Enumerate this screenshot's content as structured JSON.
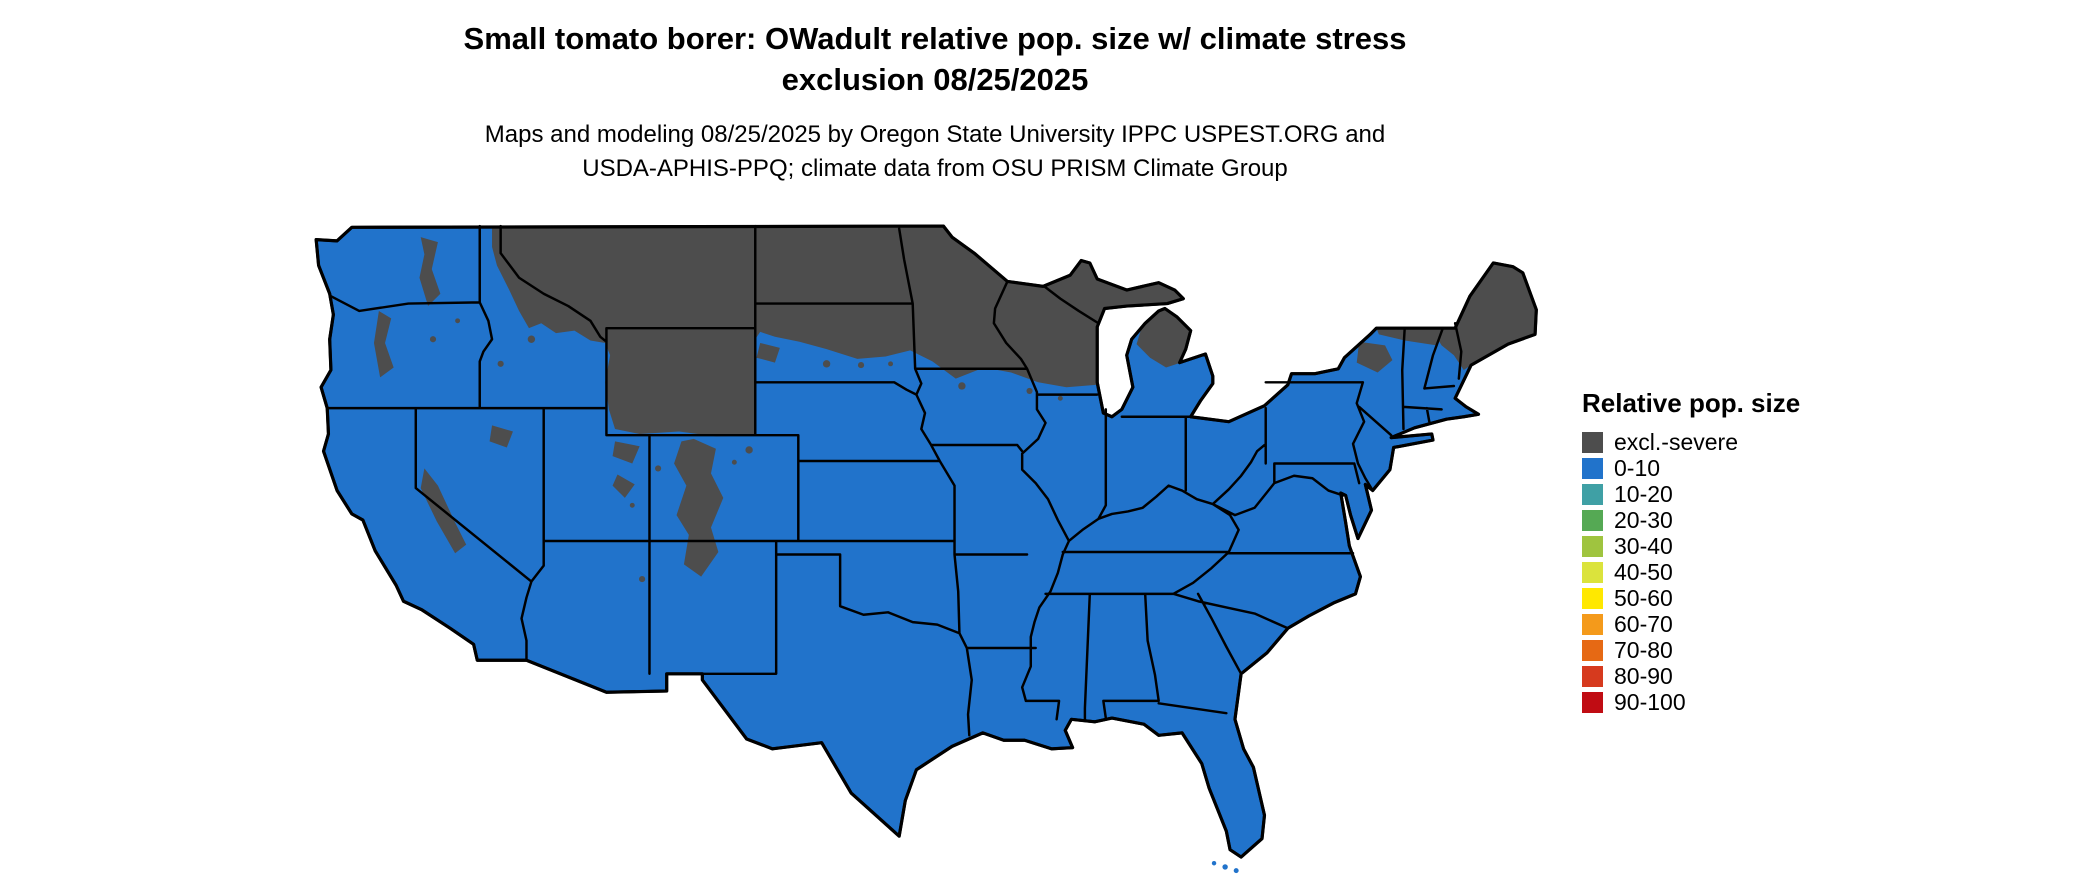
{
  "title": {
    "line1": "Small tomato borer: OWadult relative pop. size w/ climate stress",
    "line2": "exclusion 08/25/2025"
  },
  "subtitle": {
    "line1": "Maps and modeling 08/25/2025 by Oregon State University IPPC USPEST.ORG and",
    "line2": "USDA-APHIS-PPQ; climate data from OSU PRISM Climate Group"
  },
  "legend": {
    "title": "Relative pop. size",
    "items": [
      {
        "label": "excl.-severe",
        "color": "#4d4d4d"
      },
      {
        "label": "0-10",
        "color": "#2173cb"
      },
      {
        "label": "10-20",
        "color": "#3fa0a5"
      },
      {
        "label": "20-30",
        "color": "#55a954"
      },
      {
        "label": "30-40",
        "color": "#9fc43f"
      },
      {
        "label": "40-50",
        "color": "#dbe33c"
      },
      {
        "label": "50-60",
        "color": "#ffe800"
      },
      {
        "label": "60-70",
        "color": "#f49a1b"
      },
      {
        "label": "70-80",
        "color": "#e66914"
      },
      {
        "label": "80-90",
        "color": "#d63a1e"
      },
      {
        "label": "90-100",
        "color": "#c00c13"
      }
    ]
  },
  "map": {
    "base_fill": "#2173cb",
    "exclusion_fill": "#4d4d4d",
    "border_color": "#000000",
    "background": "#ffffff"
  }
}
